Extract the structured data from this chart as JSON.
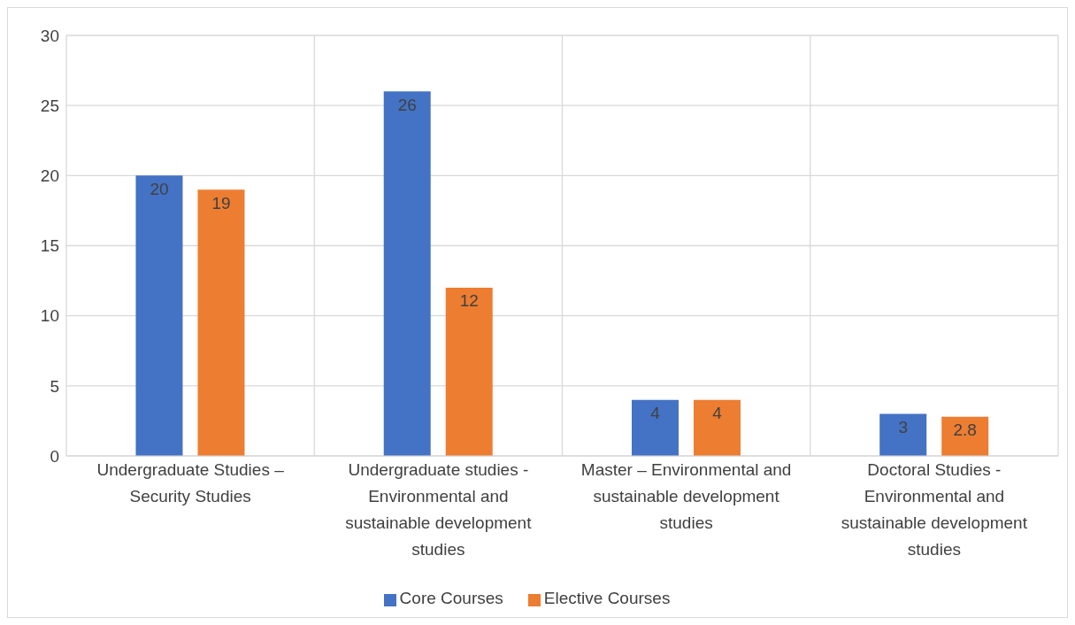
{
  "chart_data": {
    "type": "bar",
    "categories": [
      "Undergraduate Studies – Security Studies",
      "Undergraduate studies - Environmental and sustainable development studies",
      "Master – Environmental and sustainable development studies",
      "Doctoral Studies - Environmental and sustainable development studies"
    ],
    "series": [
      {
        "name": "Core Courses",
        "color": "#4472c4",
        "values": [
          20,
          26,
          4,
          3
        ]
      },
      {
        "name": "Elective Courses",
        "color": "#ed7d31",
        "values": [
          19,
          12,
          4,
          2.8
        ]
      }
    ],
    "ylim": [
      0,
      30
    ],
    "yticks": [
      0,
      5,
      10,
      15,
      20,
      25,
      30
    ],
    "grid": true,
    "legend": "bottom",
    "data_labels": true
  }
}
